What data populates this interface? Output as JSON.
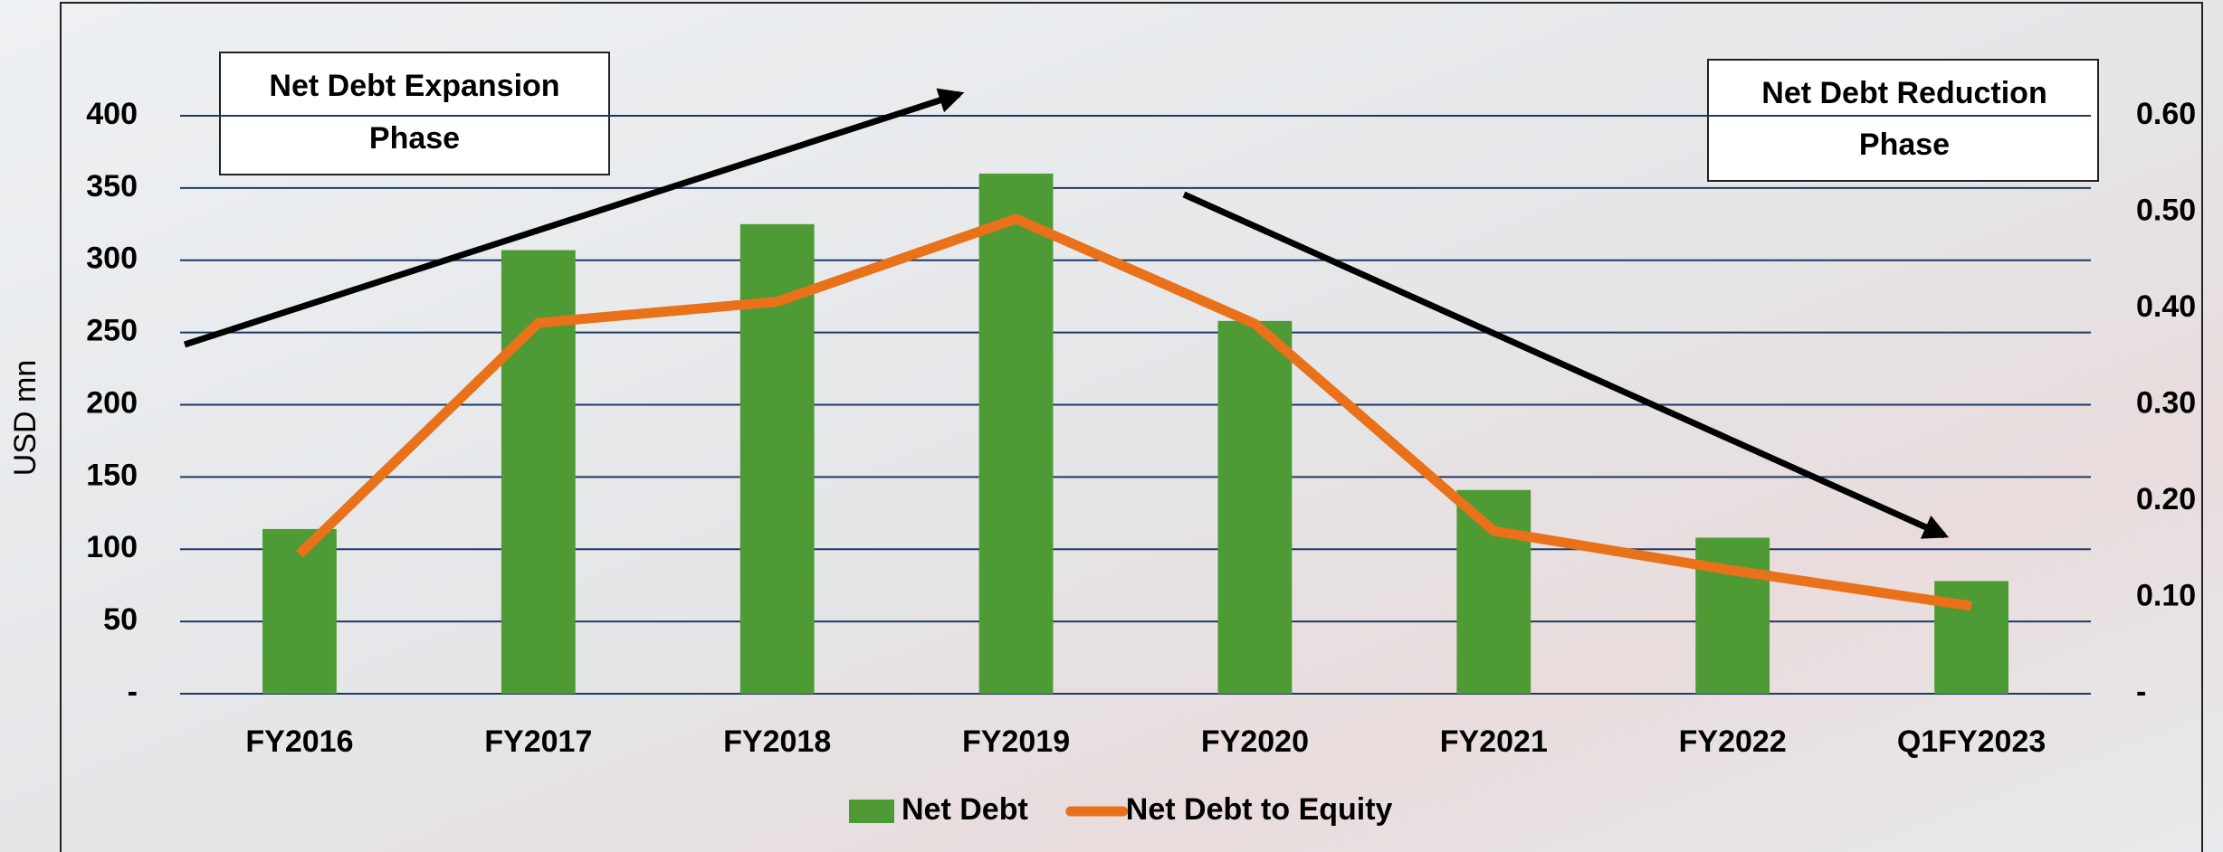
{
  "chart_data": {
    "type": "bar",
    "y_label": "USD mn",
    "categories": [
      "FY2016",
      "FY2017",
      "FY2018",
      "FY2019",
      "FY2020",
      "FY2021",
      "FY2022",
      "Q1FY2023"
    ],
    "series": [
      {
        "name": "Net Debt",
        "type": "bar",
        "color": "#4e9a35",
        "values": [
          114,
          307,
          325,
          360,
          258,
          141,
          108,
          78
        ]
      },
      {
        "name": "Net Debt to Equity",
        "type": "line",
        "axis": "y2",
        "color": "#e8711a",
        "values": [
          0.145,
          0.385,
          0.407,
          0.493,
          0.384,
          0.169,
          0.128,
          0.091
        ]
      }
    ],
    "ylim": [
      0,
      400
    ],
    "yticks": [
      {
        "value": 0,
        "label": "-"
      },
      50,
      100,
      150,
      200,
      250,
      300,
      350,
      400
    ],
    "y2lim": [
      0,
      0.6
    ],
    "y2ticks": [
      {
        "value": 0,
        "label": "-"
      },
      {
        "value": 0.1,
        "label": "0.10"
      },
      {
        "value": 0.2,
        "label": "0.20"
      },
      {
        "value": 0.3,
        "label": "0.30"
      },
      {
        "value": 0.4,
        "label": "0.40"
      },
      {
        "value": 0.5,
        "label": "0.50"
      },
      {
        "value": 0.6,
        "label": "0.60"
      }
    ],
    "grid": true,
    "legend": "bottom",
    "annotations": [
      {
        "lines": [
          "Net Debt Expansion",
          "Phase"
        ]
      },
      {
        "lines": [
          "Net Debt Reduction",
          "Phase"
        ]
      }
    ]
  }
}
